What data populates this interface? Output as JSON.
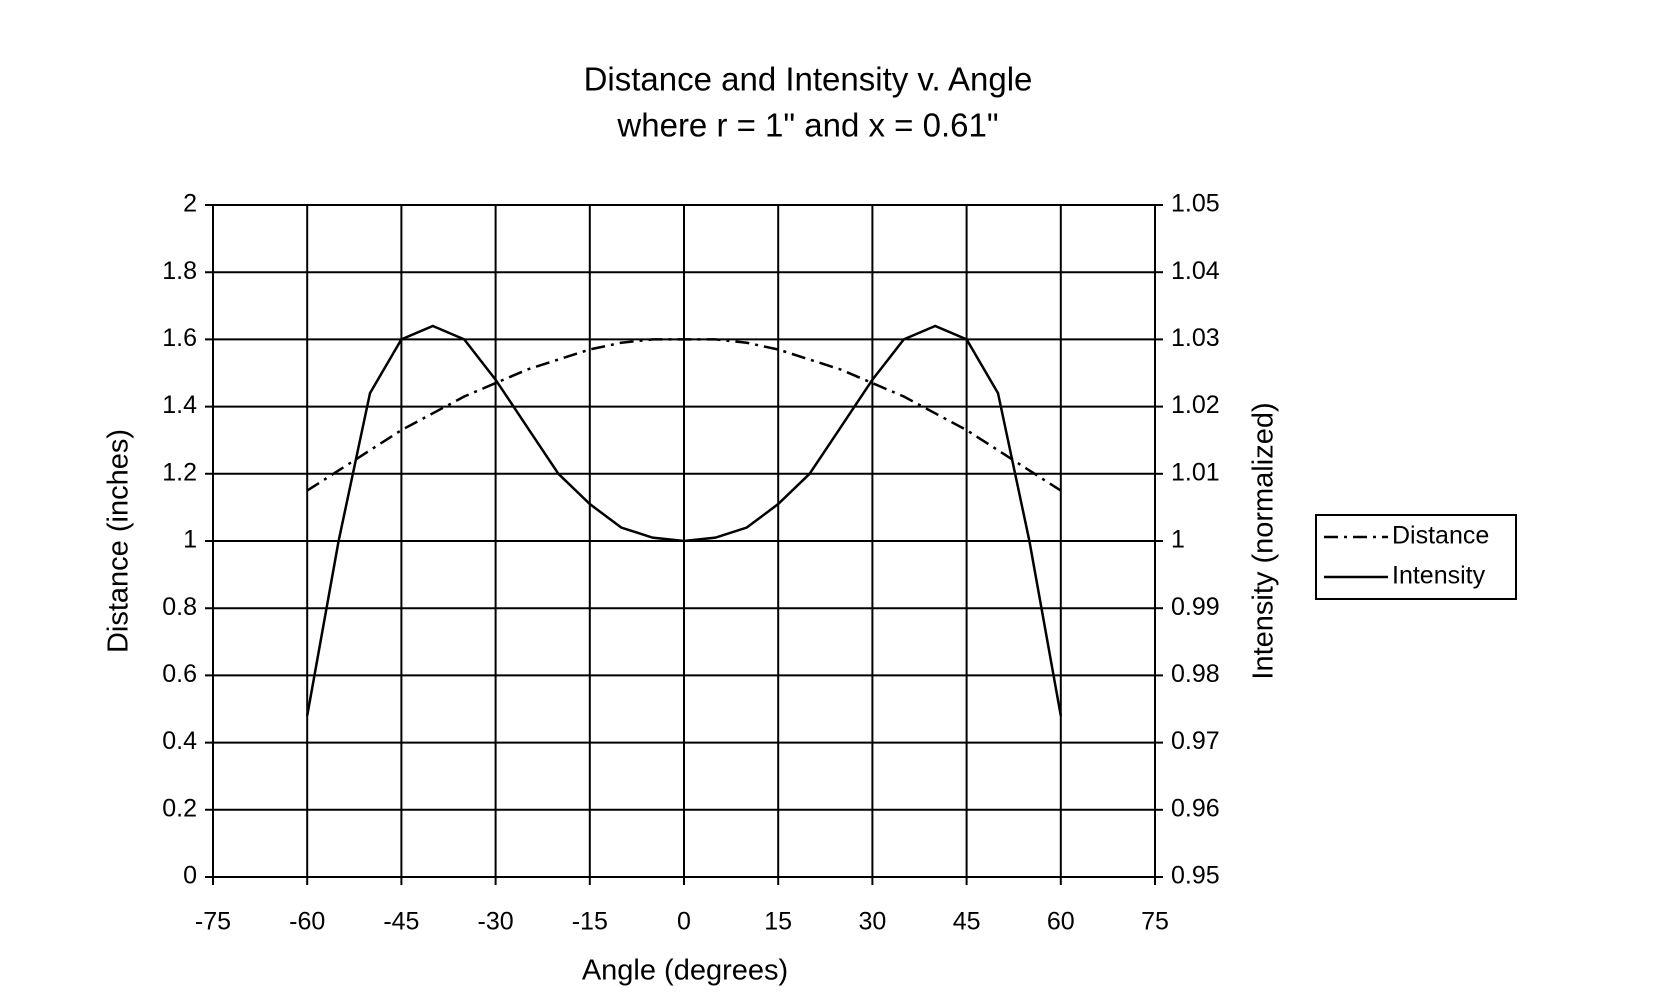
{
  "chart_data": {
    "type": "line",
    "title": [
      "Distance and Intensity v. Angle",
      "where r = 1\" and x = 0.61\""
    ],
    "x_label": "Angle (degrees)",
    "y_label": "Distance (inches)",
    "y2_label": "Intensity (normalized)",
    "x": [
      -60,
      -55,
      -50,
      -45,
      -40,
      -35,
      -30,
      -25,
      -20,
      -15,
      -10,
      -5,
      0,
      5,
      10,
      15,
      20,
      25,
      30,
      35,
      40,
      45,
      50,
      55,
      60
    ],
    "series": [
      {
        "name": "Distance",
        "color": "#000000",
        "style": "dashdot",
        "axis": "y",
        "values": [
          1.15,
          1.21,
          1.27,
          1.33,
          1.38,
          1.43,
          1.47,
          1.51,
          1.54,
          1.57,
          1.59,
          1.6,
          1.6,
          1.6,
          1.59,
          1.57,
          1.54,
          1.51,
          1.47,
          1.43,
          1.38,
          1.33,
          1.27,
          1.21,
          1.15
        ]
      },
      {
        "name": "Intensity",
        "color": "#000000",
        "style": "solid",
        "axis": "y2",
        "values": [
          0.974,
          1.0,
          1.022,
          1.03,
          1.032,
          1.03,
          1.024,
          1.017,
          1.01,
          1.0055,
          1.002,
          1.0005,
          1.0,
          1.0005,
          1.002,
          1.0055,
          1.01,
          1.017,
          1.024,
          1.03,
          1.032,
          1.03,
          1.022,
          1.0,
          0.974
        ]
      }
    ],
    "xlim": [
      -75,
      75
    ],
    "xticks": [
      -75,
      -60,
      -45,
      -30,
      -15,
      0,
      15,
      30,
      45,
      60,
      75
    ],
    "ylim": [
      0,
      2
    ],
    "yticks": [
      0,
      0.2,
      0.4,
      0.6,
      0.8,
      1,
      1.2,
      1.4,
      1.6,
      1.8,
      2
    ],
    "y2lim": [
      0.95,
      1.05
    ],
    "y2ticks": [
      0.95,
      0.96,
      0.97,
      0.98,
      0.99,
      1,
      1.01,
      1.02,
      1.03,
      1.04,
      1.05
    ],
    "grid": true,
    "legend": "right"
  }
}
